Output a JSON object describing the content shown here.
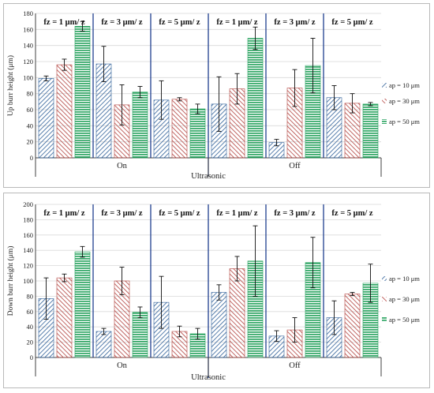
{
  "chart_data": [
    {
      "type": "bar",
      "ylabel": "Up burr height (μm)",
      "xlabel": "Ultrasonic",
      "ylim": [
        0,
        180
      ],
      "yticks": [
        0,
        20,
        40,
        60,
        80,
        100,
        120,
        140,
        160,
        180
      ],
      "grid": true,
      "groups": [
        "On",
        "Off"
      ],
      "section_labels": [
        "fz = 1 μm/ z",
        "fz = 3 μm/ z",
        "fz = 5 μm/ z",
        "fz = 1 μm/ z",
        "fz = 3 μm/ z",
        "fz = 5 μm/ z"
      ],
      "series": [
        {
          "name": "ap = 10 μm",
          "values": [
            99,
            117,
            72,
            67,
            19,
            75
          ],
          "errors": [
            3,
            22,
            24,
            34,
            4,
            15
          ]
        },
        {
          "name": "ap = 30 μm",
          "values": [
            116,
            66,
            73,
            86,
            87,
            68
          ],
          "errors": [
            7,
            25,
            2,
            19,
            23,
            12
          ]
        },
        {
          "name": "ap = 50 μm",
          "values": [
            164,
            82,
            61,
            149,
            115,
            67
          ],
          "errors": [
            6,
            7,
            6,
            14,
            34,
            2
          ]
        }
      ],
      "legend": "right"
    },
    {
      "type": "bar",
      "ylabel": "Down burr height (μm)",
      "xlabel": "Ultrasonic",
      "ylim": [
        0,
        200
      ],
      "yticks": [
        0,
        20,
        40,
        60,
        80,
        100,
        120,
        140,
        160,
        180,
        200
      ],
      "grid": true,
      "groups": [
        "On",
        "Off"
      ],
      "section_labels": [
        "fz = 1 μm/ z",
        "fz = 3 μm/ z",
        "fz = 5 μm/ z",
        "fz = 1 μm/ z",
        "fz = 3 μm/ z",
        "fz = 5 μm/ z"
      ],
      "series": [
        {
          "name": "ap = 10 μm",
          "values": [
            77,
            34,
            72,
            85,
            28,
            52
          ],
          "errors": [
            27,
            4,
            34,
            10,
            7,
            22
          ]
        },
        {
          "name": "ap = 30 μm",
          "values": [
            104,
            100,
            34,
            116,
            36,
            83
          ],
          "errors": [
            5,
            18,
            7,
            16,
            16,
            2
          ]
        },
        {
          "name": "ap = 50 μm",
          "values": [
            138,
            59,
            31,
            126,
            124,
            97
          ],
          "errors": [
            7,
            7,
            7,
            46,
            33,
            25
          ]
        }
      ],
      "legend": "right"
    }
  ],
  "colors": {
    "ap10": "#2e5f98",
    "ap30": "#b1413d",
    "ap50": "#22a05a"
  }
}
